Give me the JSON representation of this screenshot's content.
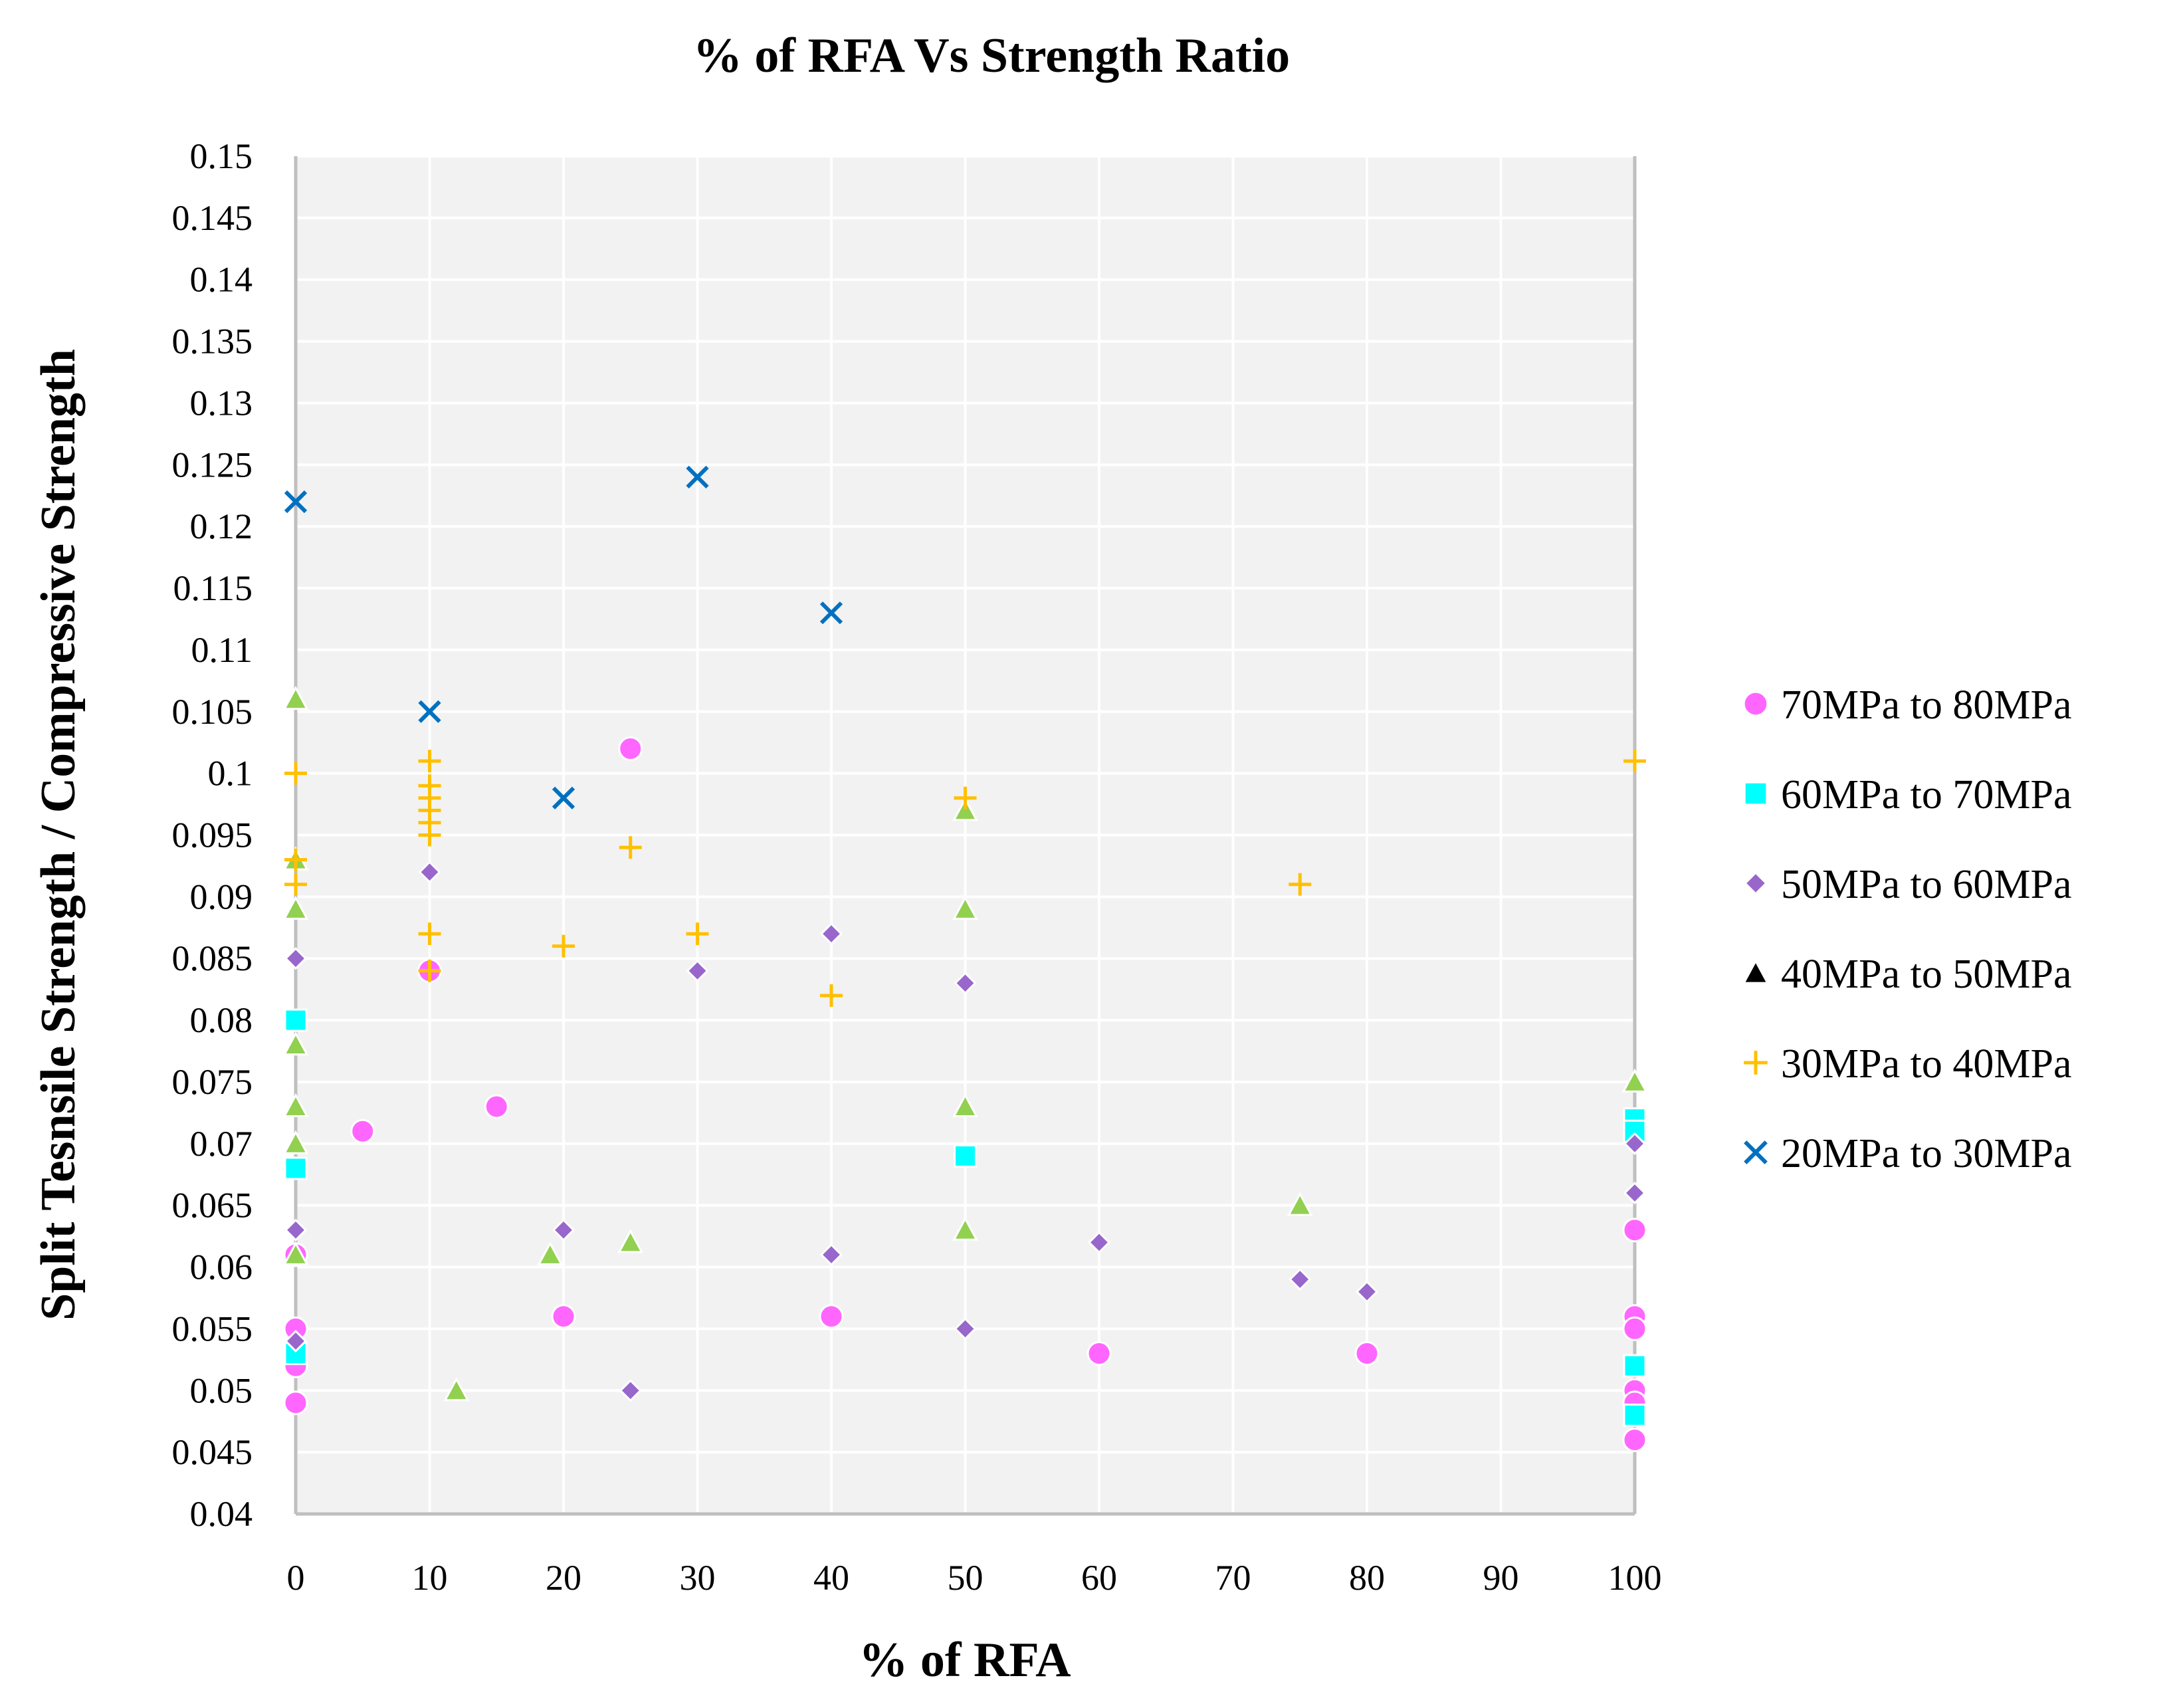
{
  "chart_data": {
    "type": "scatter",
    "title": "% of RFA Vs Strength Ratio",
    "xlabel": "% of RFA",
    "ylabel": "Split Tesnsile Strength / Compressive Strength",
    "xlim": [
      0,
      100
    ],
    "ylim": [
      0.04,
      0.15
    ],
    "x_ticks": [
      "0",
      "10",
      "20",
      "30",
      "40",
      "50",
      "60",
      "70",
      "80",
      "90",
      "100"
    ],
    "y_ticks": [
      "0.04",
      "0.045",
      "0.05",
      "0.055",
      "0.06",
      "0.065",
      "0.07",
      "0.075",
      "0.08",
      "0.085",
      "0.09",
      "0.095",
      "0.1",
      "0.105",
      "0.11",
      "0.115",
      "0.12",
      "0.125",
      "0.13",
      "0.135",
      "0.14",
      "0.145",
      "0.15"
    ],
    "grid": true,
    "legend_position": "right",
    "series": [
      {
        "name": "70MPa to 80MPa",
        "marker": "circle",
        "color": "#FF66FF",
        "points": [
          [
            0,
            0.061
          ],
          [
            0,
            0.055
          ],
          [
            0,
            0.052
          ],
          [
            0,
            0.049
          ],
          [
            5,
            0.071
          ],
          [
            10,
            0.084
          ],
          [
            15,
            0.073
          ],
          [
            20,
            0.056
          ],
          [
            25,
            0.102
          ],
          [
            40,
            0.056
          ],
          [
            60,
            0.053
          ],
          [
            80,
            0.053
          ],
          [
            100,
            0.063
          ],
          [
            100,
            0.056
          ],
          [
            100,
            0.055
          ],
          [
            100,
            0.05
          ],
          [
            100,
            0.049
          ],
          [
            100,
            0.046
          ]
        ]
      },
      {
        "name": "60MPa to 70MPa",
        "marker": "square",
        "color": "#00FFFF",
        "points": [
          [
            0,
            0.08
          ],
          [
            0,
            0.068
          ],
          [
            0,
            0.053
          ],
          [
            50,
            0.069
          ],
          [
            100,
            0.072
          ],
          [
            100,
            0.071
          ],
          [
            100,
            0.052
          ],
          [
            100,
            0.048
          ]
        ]
      },
      {
        "name": "50MPa to 60MPa",
        "marker": "diamond",
        "color": "#9966CC",
        "points": [
          [
            0,
            0.085
          ],
          [
            0,
            0.063
          ],
          [
            0,
            0.054
          ],
          [
            10,
            0.092
          ],
          [
            20,
            0.063
          ],
          [
            25,
            0.05
          ],
          [
            30,
            0.084
          ],
          [
            40,
            0.087
          ],
          [
            40,
            0.061
          ],
          [
            50,
            0.083
          ],
          [
            50,
            0.055
          ],
          [
            60,
            0.062
          ],
          [
            75,
            0.059
          ],
          [
            80,
            0.058
          ],
          [
            100,
            0.07
          ],
          [
            100,
            0.066
          ]
        ]
      },
      {
        "name": "40MPa to 50MPa",
        "marker": "triangle",
        "color": "#92D050",
        "legend_color": "#000000",
        "points": [
          [
            0,
            0.106
          ],
          [
            0,
            0.093
          ],
          [
            0,
            0.089
          ],
          [
            0,
            0.078
          ],
          [
            0,
            0.073
          ],
          [
            0,
            0.07
          ],
          [
            0,
            0.061
          ],
          [
            12,
            0.05
          ],
          [
            19,
            0.061
          ],
          [
            25,
            0.062
          ],
          [
            50,
            0.097
          ],
          [
            50,
            0.089
          ],
          [
            50,
            0.073
          ],
          [
            50,
            0.063
          ],
          [
            75,
            0.065
          ],
          [
            100,
            0.075
          ]
        ]
      },
      {
        "name": "30MPa to 40MPa",
        "marker": "plus",
        "color": "#FFC000",
        "points": [
          [
            0,
            0.1
          ],
          [
            0,
            0.093
          ],
          [
            0,
            0.091
          ],
          [
            10,
            0.101
          ],
          [
            10,
            0.099
          ],
          [
            10,
            0.098
          ],
          [
            10,
            0.097
          ],
          [
            10,
            0.096
          ],
          [
            10,
            0.095
          ],
          [
            10,
            0.087
          ],
          [
            10,
            0.084
          ],
          [
            20,
            0.086
          ],
          [
            25,
            0.094
          ],
          [
            30,
            0.087
          ],
          [
            40,
            0.082
          ],
          [
            50,
            0.098
          ],
          [
            75,
            0.091
          ],
          [
            100,
            0.101
          ]
        ]
      },
      {
        "name": "20MPa to 30MPa",
        "marker": "x",
        "color": "#0070C0",
        "points": [
          [
            0,
            0.122
          ],
          [
            10,
            0.105
          ],
          [
            20,
            0.098
          ],
          [
            30,
            0.124
          ],
          [
            40,
            0.113
          ]
        ]
      }
    ]
  }
}
